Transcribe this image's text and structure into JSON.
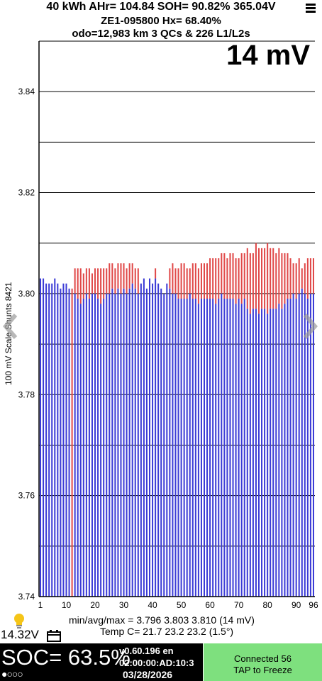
{
  "header": {
    "line1": "40 kWh  AHr= 104.84  SOH= 90.82%   365.04V",
    "line2": "ZE1-095800   Hx= 68.40%",
    "line3": "odo=12,983 km 3 QCs & 226 L1/L2s",
    "menu_icon": "hamburger-menu-icon"
  },
  "spread_label": "14 mV",
  "chart_data": {
    "type": "bar",
    "title": "14 mV",
    "ylabel": "100 mV Scale Shunts 8421",
    "xlabel": "",
    "ylim": [
      3.74,
      3.85
    ],
    "y_ticks": [
      "3.74",
      "3.76",
      "3.78",
      "3.80",
      "3.82",
      "3.84"
    ],
    "x_ticks": [
      "1",
      "10",
      "20",
      "30",
      "40",
      "50",
      "60",
      "70",
      "80",
      "90",
      "96"
    ],
    "grid": true,
    "shunt_cells": [
      12,
      13,
      14,
      15,
      16,
      17,
      18,
      19,
      20,
      21,
      22,
      23,
      24,
      25,
      26,
      27,
      28,
      29,
      30,
      31,
      32,
      33,
      34,
      35,
      41,
      46,
      47,
      48,
      49,
      50,
      51,
      52,
      53,
      54,
      55,
      56,
      57,
      58,
      59,
      60,
      61,
      62,
      63,
      64,
      65,
      66,
      67,
      68,
      69,
      70,
      71,
      72,
      73,
      74,
      75,
      76,
      77,
      78,
      79,
      80,
      81,
      82,
      83,
      84,
      85,
      86,
      87,
      88,
      89,
      90,
      91,
      92,
      93,
      94,
      95,
      96
    ],
    "colors": {
      "normal": "#3b3bd6",
      "shunted": "#e04848"
    },
    "cells": [
      3.803,
      3.803,
      3.802,
      3.802,
      3.802,
      3.803,
      3.802,
      3.801,
      3.802,
      3.802,
      3.801,
      3.801,
      3.8,
      3.799,
      3.798,
      3.799,
      3.8,
      3.799,
      3.8,
      3.8,
      3.799,
      3.798,
      3.799,
      3.8,
      3.8,
      3.801,
      3.8,
      3.801,
      3.8,
      3.801,
      3.8,
      3.801,
      3.802,
      3.801,
      3.8,
      3.802,
      3.803,
      3.801,
      3.803,
      3.802,
      3.803,
      3.802,
      3.801,
      3.8,
      3.802,
      3.801,
      3.8,
      3.8,
      3.799,
      3.799,
      3.799,
      3.799,
      3.8,
      3.799,
      3.799,
      3.798,
      3.799,
      3.799,
      3.799,
      3.799,
      3.799,
      3.798,
      3.799,
      3.8,
      3.799,
      3.799,
      3.799,
      3.799,
      3.798,
      3.799,
      3.798,
      3.799,
      3.797,
      3.796,
      3.797,
      3.797,
      3.796,
      3.797,
      3.797,
      3.796,
      3.797,
      3.797,
      3.797,
      3.798,
      3.797,
      3.798,
      3.799,
      3.799,
      3.8,
      3.799,
      3.8,
      3.801,
      3.8,
      3.799,
      3.8,
      3.8
    ],
    "max_cells": [
      3.803,
      3.803,
      3.802,
      3.802,
      3.802,
      3.803,
      3.802,
      3.801,
      3.802,
      3.802,
      3.801,
      3.801,
      3.805,
      3.805,
      3.805,
      3.804,
      3.805,
      3.805,
      3.804,
      3.805,
      3.805,
      3.805,
      3.805,
      3.805,
      3.806,
      3.806,
      3.805,
      3.806,
      3.806,
      3.806,
      3.805,
      3.806,
      3.806,
      3.805,
      3.805,
      3.802,
      3.803,
      3.801,
      3.803,
      3.802,
      3.805,
      3.802,
      3.801,
      3.8,
      3.802,
      3.805,
      3.806,
      3.805,
      3.805,
      3.806,
      3.806,
      3.805,
      3.805,
      3.806,
      3.806,
      3.805,
      3.806,
      3.806,
      3.806,
      3.807,
      3.807,
      3.807,
      3.807,
      3.808,
      3.808,
      3.807,
      3.808,
      3.808,
      3.807,
      3.807,
      3.808,
      3.808,
      3.809,
      3.808,
      3.808,
      3.81,
      3.809,
      3.809,
      3.809,
      3.81,
      3.809,
      3.809,
      3.808,
      3.809,
      3.808,
      3.808,
      3.808,
      3.807,
      3.806,
      3.806,
      3.807,
      3.805,
      3.806,
      3.807,
      3.807,
      3.807
    ]
  },
  "stats": {
    "line1": "min/avg/max = 3.796 3.803 3.810  (14 mV)",
    "line2": "Temp C= 21.7  23.2  23.2  (1.5°)"
  },
  "aux_voltage": "14.32V",
  "icons": {
    "bulb": "lightbulb-icon",
    "battery": "battery-icon",
    "prev": "chevron-left-icon",
    "next": "chevron-right-icon"
  },
  "bottom": {
    "soc": "SOC= 63.5%",
    "dots": "●○○○",
    "version": "v0.60.196 en",
    "mac": "02:00:00:AD:10:3",
    "date": "03/28/2026",
    "connected": "Connected 56",
    "tap": "TAP to Freeze"
  }
}
